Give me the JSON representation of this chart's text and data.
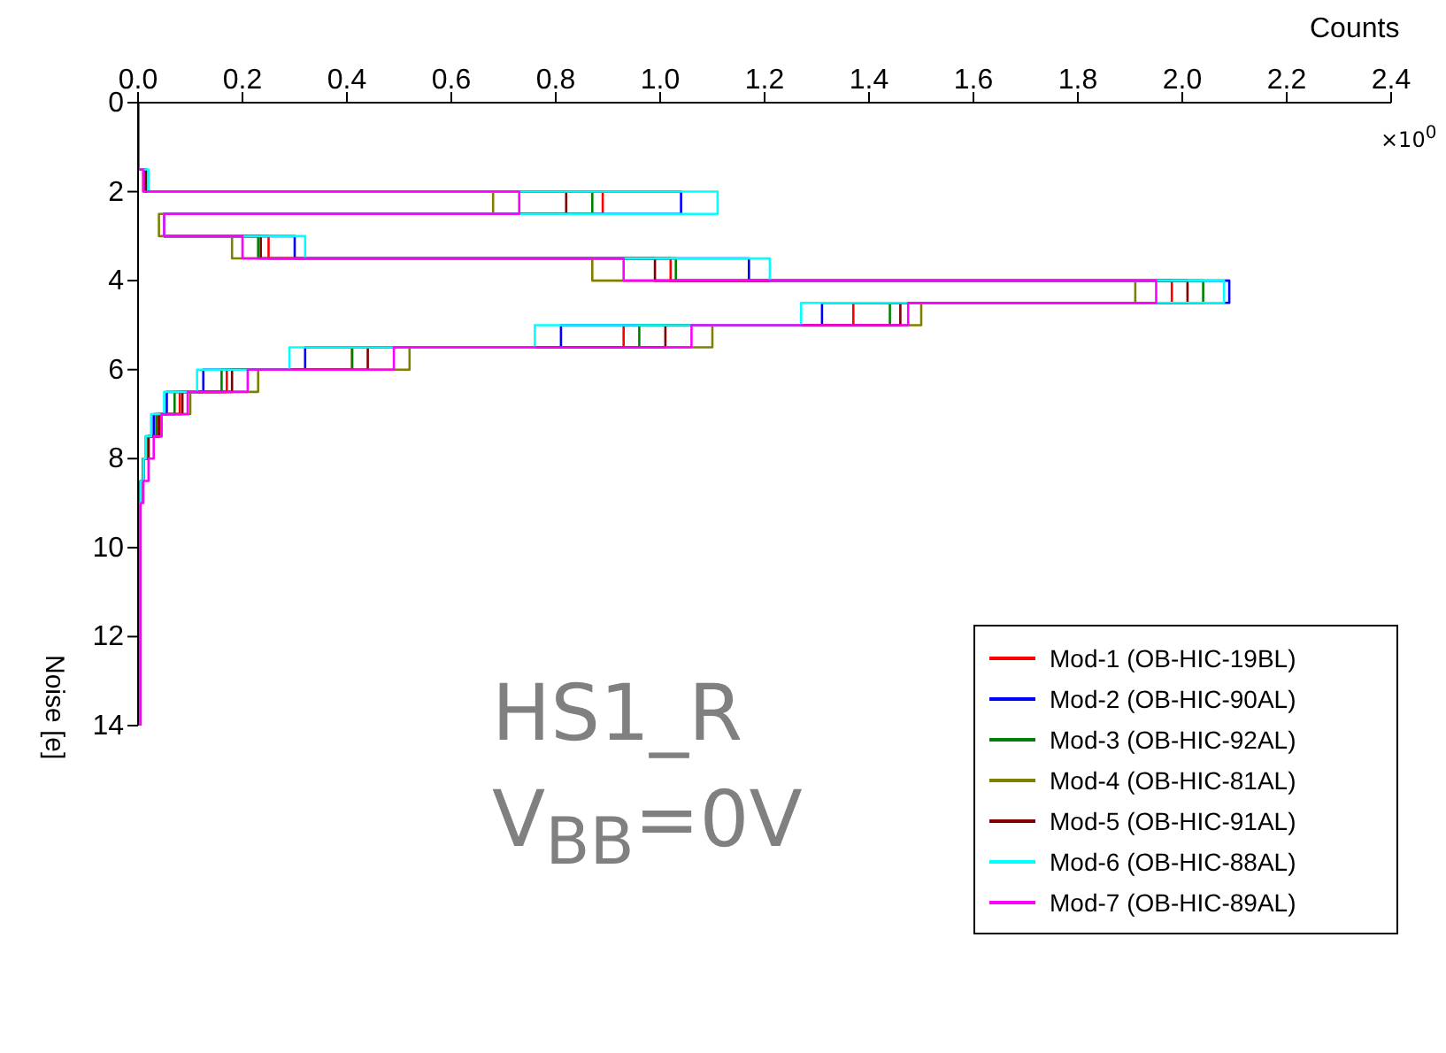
{
  "chart_data": {
    "type": "histogram",
    "orientation": "horizontal",
    "xlabel": "Counts",
    "ylabel": "Noise [e]",
    "bins": [
      0,
      0.5,
      1,
      1.5,
      2,
      2.5,
      3,
      3.5,
      4,
      4.5,
      5,
      5.5,
      6,
      6.5,
      7,
      7.5,
      8,
      8.5,
      9,
      9.5,
      10,
      10.5,
      11,
      11.5,
      12,
      12.5,
      13,
      13.5,
      14
    ],
    "series": [
      {
        "name": "Mod-1 (OB-HIC-19BL)",
        "color": "#ff0000",
        "values": [
          0,
          0,
          0,
          0.015,
          0.89,
          0.05,
          0.25,
          1.02,
          1.98,
          1.37,
          0.93,
          0.41,
          0.17,
          0.08,
          0.04,
          0.02,
          0.01,
          0.005,
          0,
          0,
          0,
          0,
          0,
          0,
          0,
          0,
          0,
          0
        ]
      },
      {
        "name": "Mod-2 (OB-HIC-90AL)",
        "color": "#0000ff",
        "values": [
          0,
          0,
          0,
          0.015,
          1.04,
          0.05,
          0.3,
          1.17,
          2.09,
          1.31,
          0.81,
          0.32,
          0.125,
          0.055,
          0.03,
          0.015,
          0.01,
          0.005,
          0,
          0,
          0,
          0,
          0,
          0,
          0,
          0,
          0,
          0
        ]
      },
      {
        "name": "Mod-3 (OB-HIC-92AL)",
        "color": "#008000",
        "values": [
          0,
          0,
          0,
          0.015,
          0.87,
          0.05,
          0.23,
          1.03,
          2.04,
          1.44,
          0.96,
          0.41,
          0.16,
          0.07,
          0.035,
          0.02,
          0.01,
          0.005,
          0,
          0,
          0,
          0,
          0,
          0,
          0,
          0,
          0,
          0
        ]
      },
      {
        "name": "Mod-4 (OB-HIC-81AL)",
        "color": "#808000",
        "values": [
          0,
          0,
          0,
          0.01,
          0.68,
          0.04,
          0.18,
          0.87,
          1.91,
          1.5,
          1.1,
          0.52,
          0.23,
          0.1,
          0.045,
          0.02,
          0.01,
          0.005,
          0,
          0,
          0,
          0,
          0,
          0,
          0,
          0,
          0,
          0
        ]
      },
      {
        "name": "Mod-5 (OB-HIC-91AL)",
        "color": "#800000",
        "values": [
          0,
          0,
          0,
          0.015,
          0.82,
          0.05,
          0.235,
          0.99,
          2.01,
          1.46,
          1.01,
          0.44,
          0.18,
          0.085,
          0.04,
          0.02,
          0.01,
          0.005,
          0,
          0,
          0,
          0,
          0,
          0,
          0,
          0,
          0,
          0
        ]
      },
      {
        "name": "Mod-6 (OB-HIC-88AL)",
        "color": "#00ffff",
        "values": [
          0,
          0,
          0,
          0.02,
          1.11,
          0.05,
          0.32,
          1.21,
          2.08,
          1.27,
          0.76,
          0.29,
          0.113,
          0.05,
          0.025,
          0.015,
          0.01,
          0.005,
          0,
          0,
          0,
          0,
          0,
          0,
          0,
          0,
          0,
          0
        ]
      },
      {
        "name": "Mod-7 (OB-HIC-89AL)",
        "color": "#ff00ff",
        "values": [
          0,
          0,
          0,
          0.01,
          0.73,
          0.05,
          0.2,
          0.93,
          1.95,
          1.475,
          1.06,
          0.49,
          0.21,
          0.095,
          0.045,
          0.03,
          0.02,
          0.01,
          0.005,
          0.005,
          0.005,
          0.005,
          0.005,
          0.005,
          0.005,
          0.005,
          0.005,
          0.005
        ]
      }
    ],
    "ylim": [
      14,
      0
    ],
    "yticks": [
      0,
      2,
      4,
      6,
      8,
      10,
      12,
      14
    ],
    "xlim": [
      0,
      2.4
    ],
    "xticks": [
      {
        "value": 0,
        "label": "0.0"
      },
      0.2,
      0.4,
      0.6,
      0.8,
      {
        "value": 1,
        "label": "1.0"
      },
      1.2,
      1.4,
      1.6,
      1.8,
      {
        "value": 2,
        "label": "2.0"
      },
      2.2,
      2.4
    ],
    "legend": "bottom right",
    "grid": false,
    "annotations": [
      "×10$^{0}$",
      "HS1_R",
      "V$_{BB}$=0V"
    ]
  }
}
